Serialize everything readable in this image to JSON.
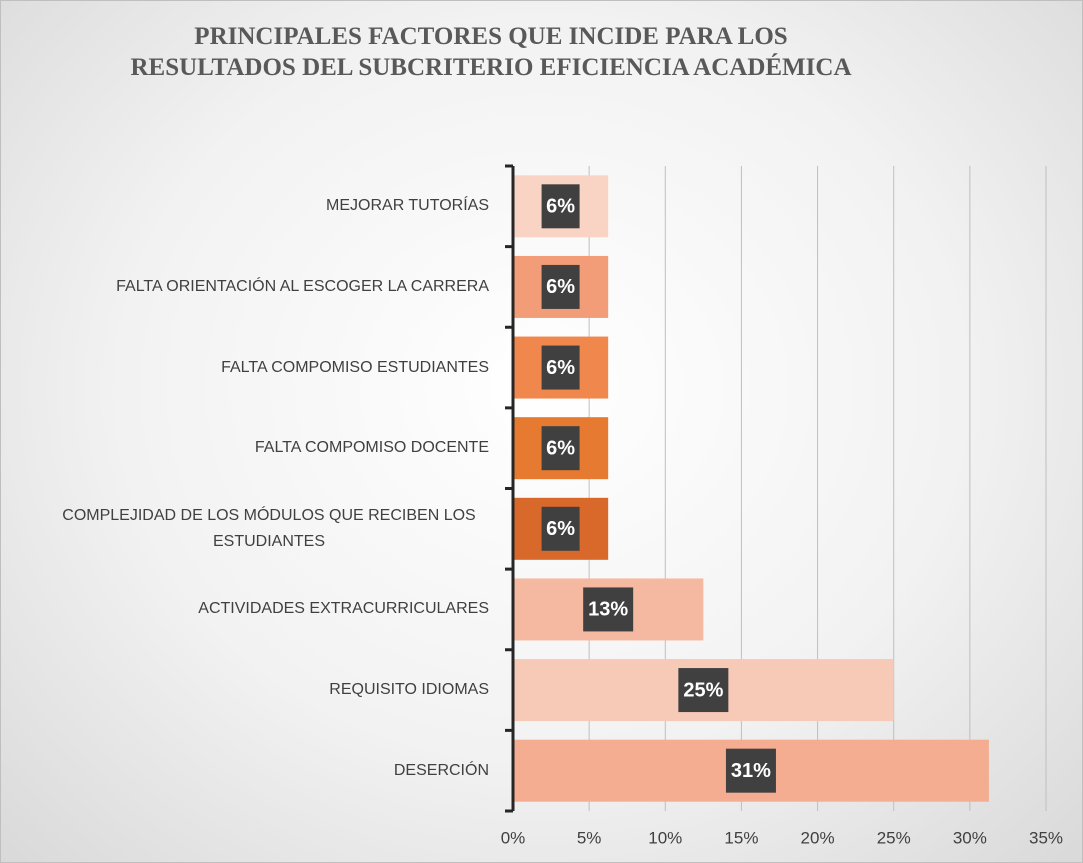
{
  "chart_data": {
    "type": "bar",
    "orientation": "horizontal",
    "title": "PRINCIPALES FACTORES QUE INCIDE PARA LOS RESULTADOS DEL SUBCRITERIO EFICIENCIA ACADÉMICA",
    "categories": [
      "DESERCIÓN",
      "REQUISITO IDIOMAS",
      "ACTIVIDADES EXTRACURRICULARES",
      "COMPLEJIDAD DE LOS MÓDULOS QUE RECIBEN LOS ESTUDIANTES",
      "FALTA COMPOMISO DOCENTE",
      "FALTA COMPOMISO ESTUDIANTES",
      "FALTA ORIENTACIÓN AL ESCOGER LA CARRERA",
      "MEJORAR TUTORÍAS"
    ],
    "values": [
      31.25,
      25,
      12.5,
      6.25,
      6.25,
      6.25,
      6.25,
      6.25
    ],
    "value_labels": [
      "31%",
      "25%",
      "13%",
      "6%",
      "6%",
      "6%",
      "6%",
      "6%"
    ],
    "colors": [
      "#f4ad91",
      "#f7c9b7",
      "#f5b8a0",
      "#d9692a",
      "#e67a30",
      "#f0884e",
      "#f29d78",
      "#f9d4c5"
    ],
    "xlim": [
      0,
      35
    ],
    "xticks": [
      {
        "value": 0,
        "label": "0%"
      },
      {
        "value": 5,
        "label": "5%"
      },
      {
        "value": 10,
        "label": "10%"
      },
      {
        "value": 15,
        "label": "15%"
      },
      {
        "value": 20,
        "label": "20%"
      },
      {
        "value": 25,
        "label": "25%"
      },
      {
        "value": 30,
        "label": "30%"
      },
      {
        "value": 35,
        "label": "35%"
      }
    ],
    "grid": true
  }
}
